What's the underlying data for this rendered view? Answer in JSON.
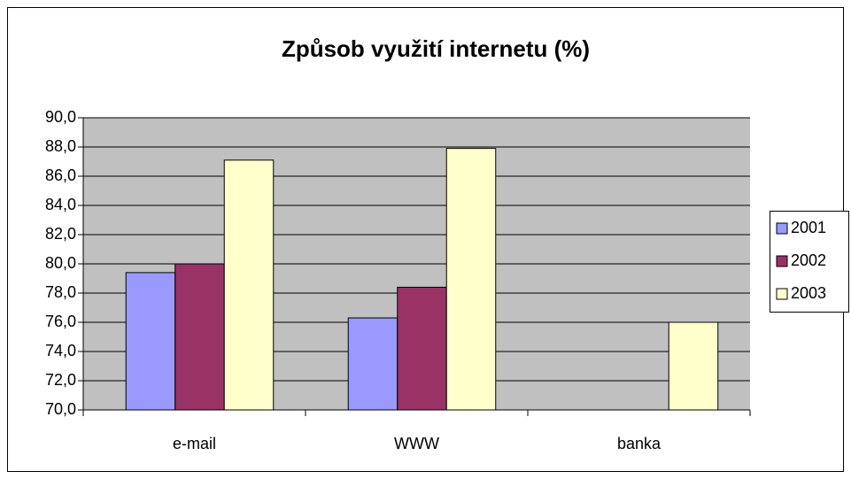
{
  "chart_data": {
    "type": "bar",
    "title": "Způsob využití internetu  (%)",
    "categories": [
      "e-mail",
      "WWW",
      "banka"
    ],
    "series": [
      {
        "name": "2001",
        "color": "#9999ff",
        "values": [
          79.4,
          76.3,
          null
        ]
      },
      {
        "name": "2002",
        "color": "#993366",
        "values": [
          80.0,
          78.4,
          null
        ]
      },
      {
        "name": "2003",
        "color": "#ffffcc",
        "values": [
          87.1,
          87.9,
          76.0
        ]
      }
    ],
    "ylim": [
      70,
      90
    ],
    "yticks": [
      {
        "value": 70,
        "label": "70,0"
      },
      {
        "value": 72,
        "label": "72,0"
      },
      {
        "value": 74,
        "label": "74,0"
      },
      {
        "value": 76,
        "label": "76,0"
      },
      {
        "value": 78,
        "label": "78,0"
      },
      {
        "value": 80,
        "label": "80,0"
      },
      {
        "value": 82,
        "label": "82,0"
      },
      {
        "value": 84,
        "label": "84,0"
      },
      {
        "value": 86,
        "label": "86,0"
      },
      {
        "value": 88,
        "label": "88,0"
      },
      {
        "value": 90,
        "label": "90,0"
      }
    ],
    "grid": true,
    "legend": "right"
  }
}
